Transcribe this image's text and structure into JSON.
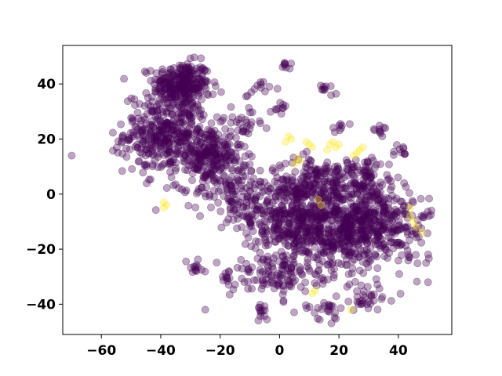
{
  "chart_data": {
    "type": "scatter",
    "title": "",
    "xlabel": "",
    "ylabel": "",
    "xlim": [
      -73,
      58
    ],
    "ylim": [
      -51,
      54
    ],
    "x_ticks": [
      -60,
      -40,
      -20,
      0,
      20,
      40
    ],
    "y_ticks": [
      -40,
      -20,
      0,
      20,
      40
    ],
    "x_tick_labels": [
      "−60",
      "−40",
      "−20",
      "0",
      "20",
      "40"
    ],
    "y_tick_labels": [
      "−40",
      "−20",
      "0",
      "20",
      "40"
    ],
    "grid": false,
    "legend": "none",
    "marker_alpha": 0.35,
    "colors": {
      "class_0": "#440154",
      "class_1": "#fde725"
    },
    "series": [
      {
        "color_key": "class_0",
        "clusters": [
          {
            "center": [
              -33,
              40
            ],
            "spread": [
              6,
              5
            ],
            "count": 260
          },
          {
            "center": [
              -38,
              22
            ],
            "spread": [
              9,
              9
            ],
            "count": 380
          },
          {
            "center": [
              -24,
              14
            ],
            "spread": [
              7,
              7
            ],
            "count": 220
          },
          {
            "center": [
              -15,
              2
            ],
            "spread": [
              8,
              8
            ],
            "count": 120
          },
          {
            "center": [
              2,
              -8
            ],
            "spread": [
              9,
              10
            ],
            "count": 330
          },
          {
            "center": [
              18,
              -12
            ],
            "spread": [
              10,
              11
            ],
            "count": 450
          },
          {
            "center": [
              32,
              -10
            ],
            "spread": [
              8,
              9
            ],
            "count": 300
          },
          {
            "center": [
              12,
              4
            ],
            "spread": [
              8,
              6
            ],
            "count": 130
          },
          {
            "center": [
              28,
              6
            ],
            "spread": [
              7,
              5
            ],
            "count": 90
          },
          {
            "center": [
              -2,
              -30
            ],
            "spread": [
              9,
              5
            ],
            "count": 100
          },
          {
            "center": [
              -6,
              -43
            ],
            "spread": [
              2,
              2
            ],
            "count": 12
          },
          {
            "center": [
              -28,
              -27
            ],
            "spread": [
              2,
              2
            ],
            "count": 12
          },
          {
            "center": [
              -18,
              -30
            ],
            "spread": [
              2,
              1.5
            ],
            "count": 10
          },
          {
            "center": [
              2,
              47
            ],
            "spread": [
              1,
              1
            ],
            "count": 8
          },
          {
            "center": [
              16,
              38
            ],
            "spread": [
              1.5,
              1.5
            ],
            "count": 10
          },
          {
            "center": [
              0,
              31
            ],
            "spread": [
              2,
              1.5
            ],
            "count": 10
          },
          {
            "center": [
              34,
              24
            ],
            "spread": [
              2,
              1.5
            ],
            "count": 10
          },
          {
            "center": [
              42,
              15
            ],
            "spread": [
              2,
              1.5
            ],
            "count": 10
          },
          {
            "center": [
              48,
              -9
            ],
            "spread": [
              2,
              2
            ],
            "count": 10
          },
          {
            "center": [
              20,
              25
            ],
            "spread": [
              2,
              1.5
            ],
            "count": 8
          },
          {
            "center": [
              -8,
              38
            ],
            "spread": [
              3,
              2
            ],
            "count": 12
          },
          {
            "center": [
              -12,
              25
            ],
            "spread": [
              4,
              4
            ],
            "count": 25
          },
          {
            "center": [
              30,
              -38
            ],
            "spread": [
              6,
              3
            ],
            "count": 30
          },
          {
            "center": [
              15,
              -42
            ],
            "spread": [
              5,
              3
            ],
            "count": 25
          },
          {
            "center": [
              45,
              -20
            ],
            "spread": [
              3,
              6
            ],
            "count": 20
          }
        ],
        "outliers": [
          [
            -70,
            14
          ],
          [
            -25,
            -42
          ],
          [
            45,
            -3
          ],
          [
            50,
            -32
          ],
          [
            -10,
            -10
          ]
        ]
      },
      {
        "color_key": "class_1",
        "points": [
          [
            3,
            21
          ],
          [
            4,
            20
          ],
          [
            2,
            19
          ],
          [
            10,
            18
          ],
          [
            11,
            17
          ],
          [
            9,
            19
          ],
          [
            17,
            18
          ],
          [
            19,
            17
          ],
          [
            18,
            19
          ],
          [
            16,
            16
          ],
          [
            20,
            18
          ],
          [
            26,
            15
          ],
          [
            27,
            16
          ],
          [
            25,
            14
          ],
          [
            28,
            17
          ],
          [
            6,
            13
          ],
          [
            7,
            12
          ],
          [
            5,
            11
          ],
          [
            -38,
            -4
          ],
          [
            -39,
            -5
          ],
          [
            -39,
            -3
          ],
          [
            11,
            -36
          ],
          [
            12,
            -35
          ],
          [
            24,
            -42
          ],
          [
            44,
            -8
          ],
          [
            45,
            -10
          ],
          [
            44,
            -5
          ],
          [
            46,
            -12
          ],
          [
            48,
            -14
          ],
          [
            13,
            -2
          ],
          [
            14,
            -4
          ]
        ]
      }
    ]
  }
}
